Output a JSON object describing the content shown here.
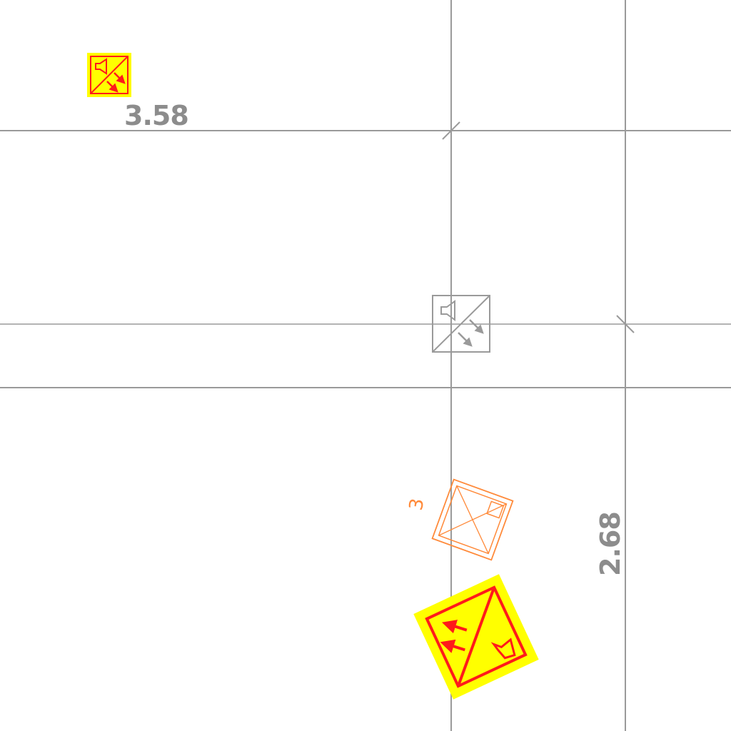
{
  "drawing": {
    "dimensions": [
      {
        "label": "3.58"
      },
      {
        "label": "2.68"
      }
    ],
    "device_tag": {
      "label": "3"
    },
    "colors": {
      "background": "#ffffff",
      "grid_line": "#9a9a9a",
      "dimension_text": "#8c8c8c",
      "highlight_fill": "#ffff00",
      "highlight_stroke": "#ff1a1a",
      "device_outline": "#ff8a3a",
      "device_symbol_gray": "#9a9a9a"
    },
    "symbols": [
      {
        "name": "speaker-symbol-highlighted-small",
        "icon": "speaker-arrows-icon"
      },
      {
        "name": "speaker-symbol-gray",
        "icon": "speaker-arrows-icon"
      },
      {
        "name": "speaker-device-orange",
        "icon": "pyramid-speaker-icon"
      },
      {
        "name": "speaker-symbol-highlighted-large",
        "icon": "speaker-arrows-icon"
      }
    ]
  }
}
